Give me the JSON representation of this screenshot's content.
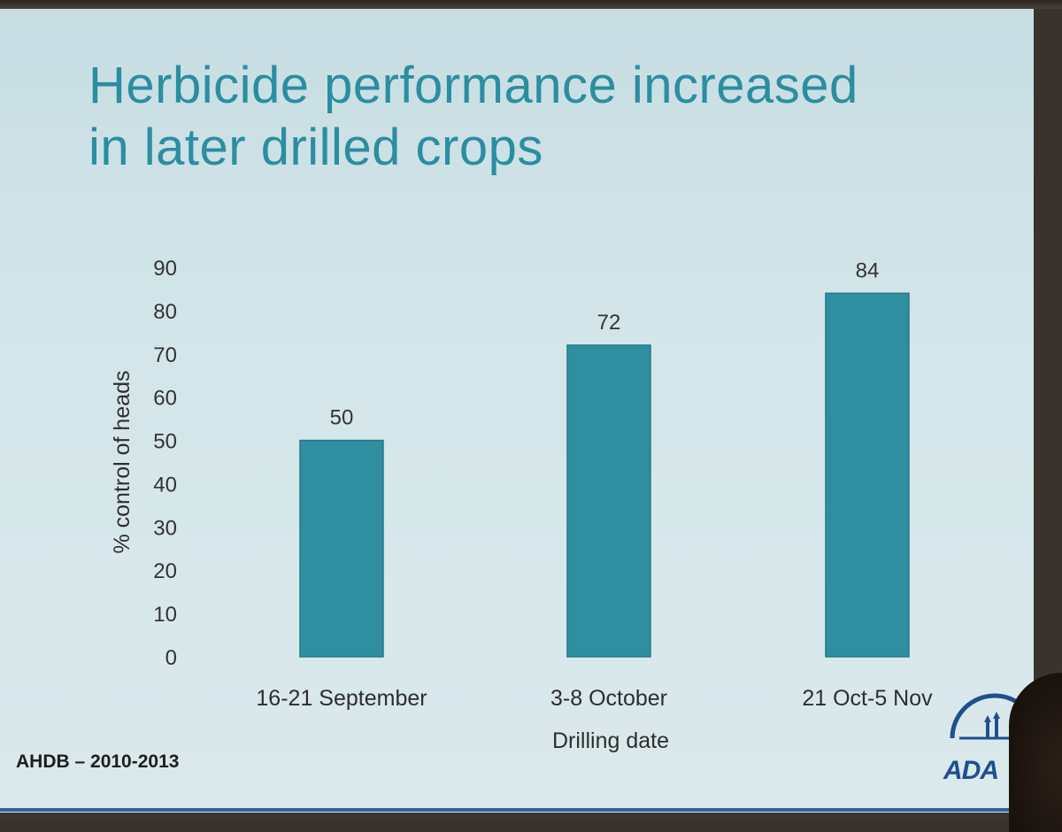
{
  "slide": {
    "title_lines": [
      "Herbicide performance increased",
      "in later drilled crops"
    ],
    "source": "AHDB – 2010-2013",
    "logo_text": "ADA"
  },
  "chart_data": {
    "type": "bar",
    "categories": [
      "16-21 September",
      "3-8 October",
      "21 Oct-5 Nov"
    ],
    "values": [
      50,
      72,
      84
    ],
    "data_labels": [
      "50",
      "72",
      "84"
    ],
    "xlabel": "Drilling date",
    "ylabel": "% control of heads",
    "ylim": [
      0,
      90
    ],
    "yticks": [
      0,
      10,
      20,
      30,
      40,
      50,
      60,
      70,
      80,
      90
    ],
    "grid": false,
    "legend": "none",
    "bar_color": "#2f8ea0"
  }
}
